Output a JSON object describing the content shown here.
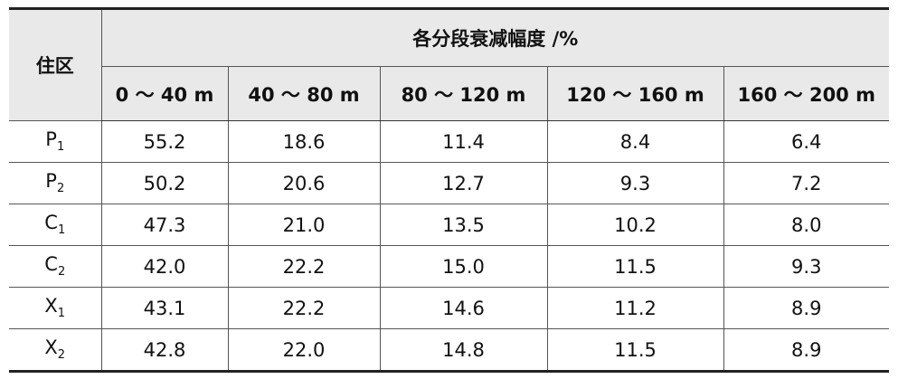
{
  "table": {
    "corner": "住区",
    "group_header": "各分段衰减幅度 /%",
    "columns": [
      "0 ～ 40 m",
      "40 ～ 80 m",
      "80 ～ 120 m",
      "120 ～ 160 m",
      "160 ～ 200 m"
    ],
    "rows": [
      {
        "label": {
          "base": "P",
          "sub": "1"
        },
        "cells": [
          "55.2",
          "18.6",
          "11.4",
          "8.4",
          "6.4"
        ]
      },
      {
        "label": {
          "base": "P",
          "sub": "2"
        },
        "cells": [
          "50.2",
          "20.6",
          "12.7",
          "9.3",
          "7.2"
        ]
      },
      {
        "label": {
          "base": "C",
          "sub": "1"
        },
        "cells": [
          "47.3",
          "21.0",
          "13.5",
          "10.2",
          "8.0"
        ]
      },
      {
        "label": {
          "base": "C",
          "sub": "2"
        },
        "cells": [
          "42.0",
          "22.2",
          "15.0",
          "11.5",
          "9.3"
        ]
      },
      {
        "label": {
          "base": "X",
          "sub": "1"
        },
        "cells": [
          "43.1",
          "22.2",
          "14.6",
          "11.2",
          "8.9"
        ]
      },
      {
        "label": {
          "base": "X",
          "sub": "2"
        },
        "cells": [
          "42.8",
          "22.0",
          "14.8",
          "11.5",
          "8.9"
        ]
      }
    ]
  }
}
